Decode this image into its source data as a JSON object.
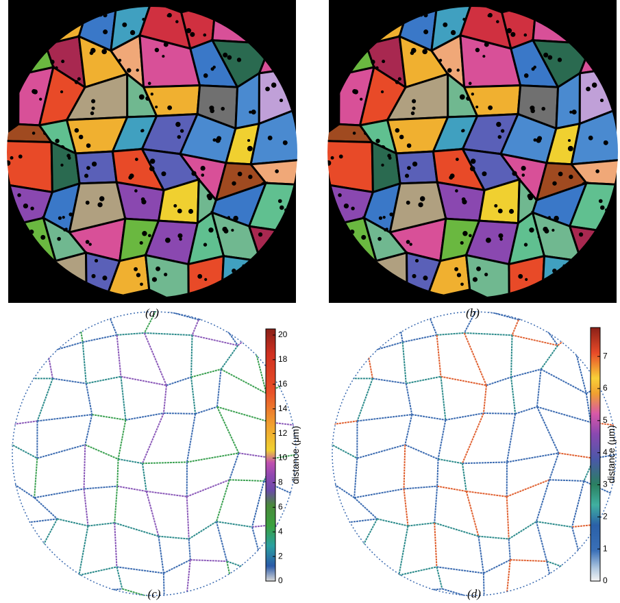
{
  "figure": {
    "panels": [
      {
        "caption": "(a)"
      },
      {
        "caption": "(b)"
      },
      {
        "caption": "(c)"
      },
      {
        "caption": "(d)"
      }
    ],
    "colorbars": [
      {
        "label": "distance (μm)",
        "lim": [
          0,
          20.5
        ],
        "ticks": [
          0,
          2,
          4,
          6,
          8,
          10,
          12,
          14,
          16,
          18,
          20
        ]
      },
      {
        "label": "distance (μm)",
        "lim": [
          0,
          7.9
        ],
        "ticks": [
          0,
          1,
          2,
          3,
          4,
          5,
          6,
          7
        ]
      }
    ]
  }
}
